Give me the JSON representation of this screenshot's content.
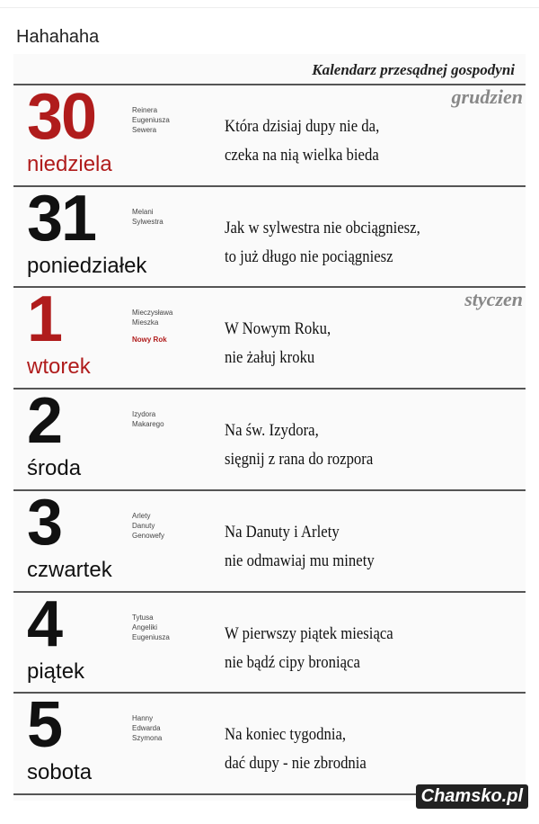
{
  "post_title": "Hahahaha",
  "calendar": {
    "title": "Kalendarz przesądnej gospodyni",
    "watermark": "Chamsko.pl",
    "days": [
      {
        "number": "30",
        "day": "niedziela",
        "red": true,
        "month": "grudzien",
        "names": [
          "Reinera",
          "Eugeniusza",
          "Sewera"
        ],
        "holiday": "",
        "verse": [
          "Która dzisiaj dupy nie da,",
          "czeka na nią wielka bieda"
        ]
      },
      {
        "number": "31",
        "day": "poniedziałek",
        "red": false,
        "month": "",
        "names": [
          "Melani",
          "Sylwestra"
        ],
        "holiday": "",
        "verse": [
          "Jak w sylwestra nie obciągniesz,",
          "to już długo nie pociągniesz"
        ]
      },
      {
        "number": "1",
        "day": "wtorek",
        "red": true,
        "month": "styczen",
        "names": [
          "Mieczysława",
          "Mieszka"
        ],
        "holiday": "Nowy Rok",
        "verse": [
          "W Nowym Roku,",
          "nie żałuj kroku"
        ]
      },
      {
        "number": "2",
        "day": "środa",
        "red": false,
        "month": "",
        "names": [
          "Izydora",
          "Makarego"
        ],
        "holiday": "",
        "verse": [
          "Na św. Izydora,",
          "sięgnij z rana do rozpora"
        ]
      },
      {
        "number": "3",
        "day": "czwartek",
        "red": false,
        "month": "",
        "names": [
          "Arlety",
          "Danuty",
          "Genowefy"
        ],
        "holiday": "",
        "verse": [
          "Na Danuty i Arlety",
          "nie odmawiaj mu minety"
        ]
      },
      {
        "number": "4",
        "day": "piątek",
        "red": false,
        "month": "",
        "names": [
          "Tytusa",
          "Angeliki",
          "Eugeniusza"
        ],
        "holiday": "",
        "verse": [
          "W pierwszy piątek miesiąca",
          "nie bądź cipy broniąca"
        ]
      },
      {
        "number": "5",
        "day": "sobota",
        "red": false,
        "month": "",
        "names": [
          "Hanny",
          "Edwarda",
          "Szymona"
        ],
        "holiday": "",
        "verse": [
          "Na koniec tygodnia,",
          "dać dupy - nie zbrodnia"
        ]
      }
    ]
  }
}
